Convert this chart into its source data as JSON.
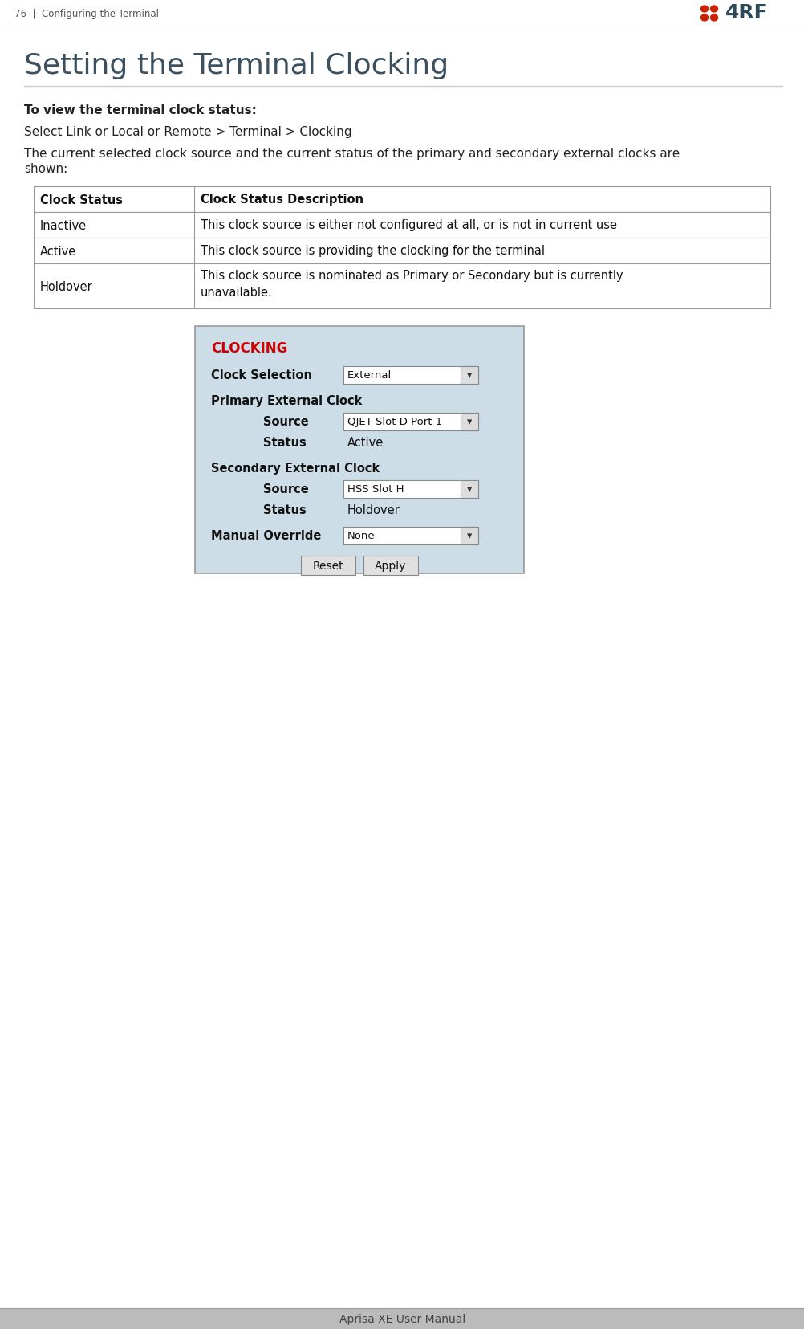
{
  "page_header_left": "76  |  Configuring the Terminal",
  "page_footer": "Aprisa XE User Manual",
  "title": "Setting the Terminal Clocking",
  "bold_intro": "To view the terminal clock status:",
  "nav_text": "Select Link or Local or Remote > Terminal > Clocking",
  "body_line1": "The current selected clock source and the current status of the primary and secondary external clocks are",
  "body_line2": "shown:",
  "table_headers": [
    "Clock Status",
    "Clock Status Description"
  ],
  "table_rows": [
    [
      "Inactive",
      "This clock source is either not configured at all, or is not in current use"
    ],
    [
      "Active",
      "This clock source is providing the clocking for the terminal"
    ],
    [
      "Holdover",
      "This clock source is nominated as Primary or Secondary but is currently\nunavailable."
    ]
  ],
  "screenshot": {
    "title": "CLOCKING",
    "title_color": "#cc0000",
    "bg_color": "#ccdde8",
    "border_color": "#999999"
  },
  "colors": {
    "logo_red": "#cc2200",
    "logo_dark": "#2d4a5a",
    "title_color": "#3a3a3a",
    "body_text": "#222222",
    "page_bg": "#ffffff",
    "footer_bg": "#bbbbbb",
    "footer_text": "#444444",
    "table_border": "#999999"
  }
}
